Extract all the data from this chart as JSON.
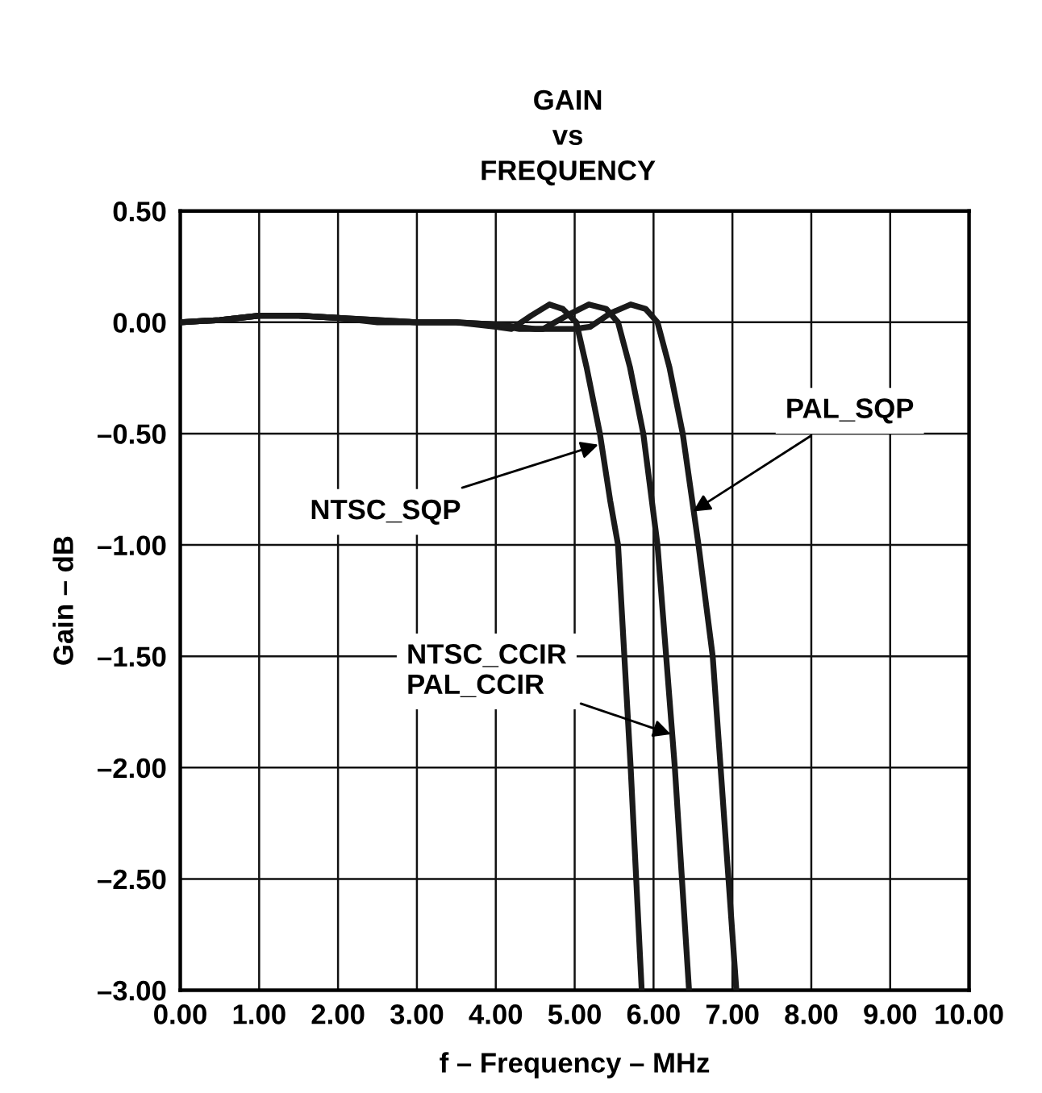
{
  "chart_data": {
    "type": "line",
    "title": "GAIN\nvs\nFREQUENCY",
    "xlabel": "f – Frequency – MHz",
    "ylabel": "Gain – dB",
    "series": [
      {
        "color": "#1a1a1a",
        "x": [
          0,
          0.5,
          1.0,
          1.5,
          2.0,
          2.5,
          3.0,
          3.5,
          4.0,
          4.2,
          4.45,
          4.68,
          4.85,
          5.02,
          5.15,
          5.32,
          5.45,
          5.55,
          5.71,
          5.85
        ],
        "values": [
          0,
          0.01,
          0.03,
          0.03,
          0.02,
          0.0,
          0.0,
          0.0,
          -0.02,
          -0.03,
          0.03,
          0.08,
          0.06,
          0.0,
          -0.2,
          -0.5,
          -0.8,
          -1.0,
          -2.0,
          -3.0
        ]
      },
      {
        "color": "#1a1a1a",
        "x": [
          0,
          0.5,
          1.0,
          1.5,
          2.0,
          2.5,
          3.0,
          3.5,
          4.0,
          4.3,
          4.6,
          4.9,
          5.18,
          5.4,
          5.55,
          5.7,
          5.87,
          6.05,
          6.27,
          6.45
        ],
        "values": [
          0,
          0.01,
          0.03,
          0.03,
          0.02,
          0.01,
          0.0,
          0.0,
          -0.01,
          -0.03,
          -0.03,
          0.03,
          0.08,
          0.06,
          0.0,
          -0.2,
          -0.5,
          -1.0,
          -2.0,
          -3.0
        ]
      },
      {
        "color": "#1a1a1a",
        "x": [
          0,
          0.5,
          1.0,
          1.5,
          2.0,
          2.5,
          3.0,
          3.5,
          4.0,
          4.5,
          5.0,
          5.2,
          5.45,
          5.71,
          5.9,
          6.05,
          6.2,
          6.37,
          6.57,
          6.75,
          6.85,
          7.05
        ],
        "values": [
          0,
          0.01,
          0.03,
          0.03,
          0.02,
          0.01,
          0.0,
          0.0,
          -0.01,
          -0.03,
          -0.03,
          -0.02,
          0.04,
          0.08,
          0.06,
          0.0,
          -0.2,
          -0.5,
          -1.0,
          -1.5,
          -2.0,
          -3.0
        ]
      }
    ],
    "annotations": [
      {
        "text": "NTSC_SQP",
        "x": 5.3,
        "y": -0.55
      },
      {
        "text": "PAL_SQP",
        "x": 6.5,
        "y": -0.85
      },
      {
        "text": "NTSC_CCIR\nPAL_CCIR",
        "x": 6.22,
        "y": -1.85
      }
    ],
    "xlim": [
      0,
      10
    ],
    "ylim": [
      -3,
      0.5
    ],
    "xticks": [
      {
        "value": 0,
        "label": "0.00"
      },
      {
        "value": 1,
        "label": "1.00"
      },
      {
        "value": 2,
        "label": "2.00"
      },
      {
        "value": 3,
        "label": "3.00"
      },
      {
        "value": 4,
        "label": "4.00"
      },
      {
        "value": 5,
        "label": "5.00"
      },
      {
        "value": 6,
        "label": "6.00"
      },
      {
        "value": 7,
        "label": "7.00"
      },
      {
        "value": 8,
        "label": "8.00"
      },
      {
        "value": 9,
        "label": "9.00"
      },
      {
        "value": 10,
        "label": "10.00"
      }
    ],
    "yticks": [
      {
        "value": 0.5,
        "label": "0.50"
      },
      {
        "value": 0,
        "label": "0.00"
      },
      {
        "value": -0.5,
        "label": "–0.50"
      },
      {
        "value": -1,
        "label": "–1.00"
      },
      {
        "value": -1.5,
        "label": "–1.50"
      },
      {
        "value": -2,
        "label": "–2.00"
      },
      {
        "value": -2.5,
        "label": "–2.50"
      },
      {
        "value": -3,
        "label": "–3.00"
      }
    ],
    "grid": true,
    "legend": false,
    "line_style": "solid",
    "marker": "none"
  }
}
